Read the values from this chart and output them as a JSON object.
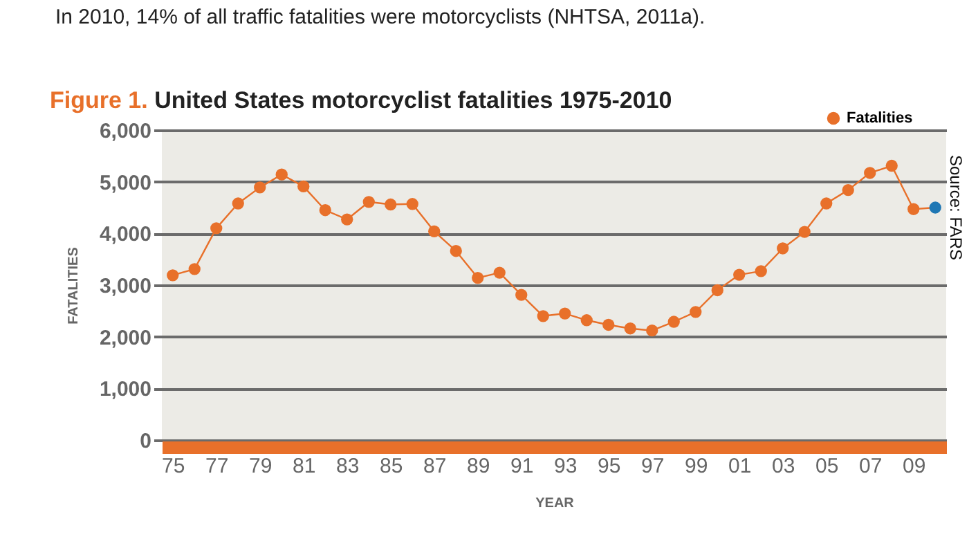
{
  "chart_data": {
    "type": "line",
    "title": "Figure 1. United States motorcyclist fatalities 1975-2010",
    "xlabel": "YEAR",
    "ylabel": "FATALITIES",
    "annotations": [
      "In 2010, 14% of all traffic fatalities were motorcyclists (NHTSA, 2011a).",
      "Source: FARS"
    ],
    "x": [
      1975,
      1976,
      1977,
      1978,
      1979,
      1980,
      1981,
      1982,
      1983,
      1984,
      1985,
      1986,
      1987,
      1988,
      1989,
      1990,
      1991,
      1992,
      1993,
      1994,
      1995,
      1996,
      1997,
      1998,
      1999,
      2000,
      2001,
      2002,
      2003,
      2004,
      2005,
      2006,
      2007,
      2008,
      2009,
      2010
    ],
    "series": [
      {
        "name": "Fatalities",
        "color": "#e8702a",
        "colors": [
          "#e8702a",
          "#e8702a",
          "#e8702a",
          "#e8702a",
          "#e8702a",
          "#e8702a",
          "#e8702a",
          "#e8702a",
          "#e8702a",
          "#e8702a",
          "#e8702a",
          "#e8702a",
          "#e8702a",
          "#e8702a",
          "#e8702a",
          "#e8702a",
          "#e8702a",
          "#e8702a",
          "#e8702a",
          "#e8702a",
          "#e8702a",
          "#e8702a",
          "#e8702a",
          "#e8702a",
          "#e8702a",
          "#e8702a",
          "#e8702a",
          "#e8702a",
          "#e8702a",
          "#e8702a",
          "#e8702a",
          "#e8702a",
          "#e8702a",
          "#e8702a",
          "#e8702a",
          "#1f77b4"
        ],
        "values": [
          3190,
          3310,
          4100,
          4580,
          4890,
          5140,
          4910,
          4450,
          4270,
          4610,
          4560,
          4570,
          4040,
          3660,
          3140,
          3240,
          2810,
          2400,
          2450,
          2320,
          2230,
          2160,
          2120,
          2290,
          2480,
          2900,
          3200,
          3270,
          3710,
          4030,
          4580,
          4840,
          5170,
          5310,
          4470,
          4500
        ]
      }
    ],
    "xlim": [
      1974.5,
      2010.5
    ],
    "xticks": [
      {
        "value": 1975,
        "label": "75"
      },
      {
        "value": 1977,
        "label": "77"
      },
      {
        "value": 1979,
        "label": "79"
      },
      {
        "value": 1981,
        "label": "81"
      },
      {
        "value": 1983,
        "label": "83"
      },
      {
        "value": 1985,
        "label": "85"
      },
      {
        "value": 1987,
        "label": "87"
      },
      {
        "value": 1989,
        "label": "89"
      },
      {
        "value": 1991,
        "label": "91"
      },
      {
        "value": 1993,
        "label": "93"
      },
      {
        "value": 1995,
        "label": "95"
      },
      {
        "value": 1997,
        "label": "97"
      },
      {
        "value": 1999,
        "label": "99"
      },
      {
        "value": 2001,
        "label": "01"
      },
      {
        "value": 2003,
        "label": "03"
      },
      {
        "value": 2005,
        "label": "05"
      },
      {
        "value": 2007,
        "label": "07"
      },
      {
        "value": 2009,
        "label": "09"
      }
    ],
    "ylim": [
      0,
      6000
    ],
    "yticks": [
      {
        "value": 0,
        "label": "0"
      },
      {
        "value": 1000,
        "label": "1,000"
      },
      {
        "value": 2000,
        "label": "2,000"
      },
      {
        "value": 3000,
        "label": "3,000"
      },
      {
        "value": 4000,
        "label": "4,000"
      },
      {
        "value": 5000,
        "label": "5,000"
      },
      {
        "value": 6000,
        "label": "6,000"
      }
    ],
    "grid": "y",
    "legend": "top right",
    "marker": "circle",
    "line_style": "solid"
  }
}
